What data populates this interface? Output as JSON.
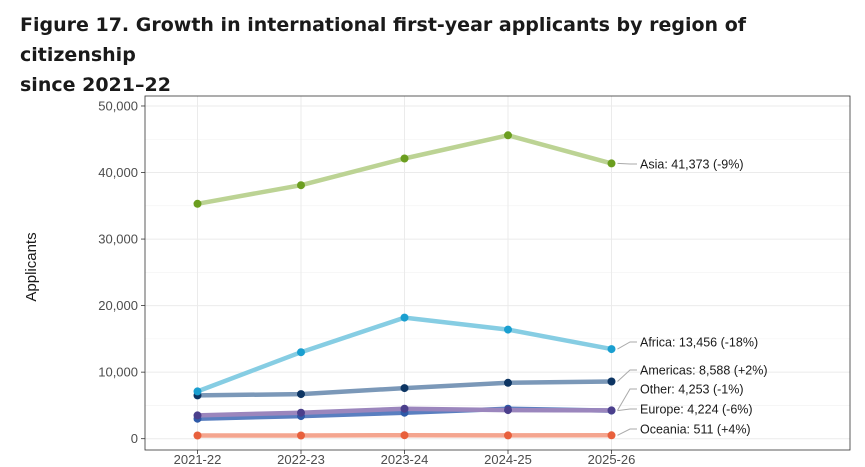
{
  "title_line1": "Figure 17. Growth in international first-year applicants by region of citizenship",
  "title_line2": "since 2021–22",
  "chart_data": {
    "type": "line",
    "title": "Figure 17. Growth in international first-year applicants by region of citizenship since 2021–22",
    "xlabel": "",
    "ylabel": "Applicants",
    "categories": [
      "2021-22",
      "2022-23",
      "2023-24",
      "2024-25",
      "2025-26"
    ],
    "y_ticks": [
      0,
      10000,
      20000,
      30000,
      40000,
      50000
    ],
    "y_tick_labels": [
      "0",
      "10,000",
      "20,000",
      "30,000",
      "40,000",
      "50,000"
    ],
    "ylim": [
      -1700,
      51500
    ],
    "grid": true,
    "series": [
      {
        "name": "Oceania",
        "values": [
          480,
          480,
          520,
          490,
          511
        ],
        "label": "Oceania: 511 (+4%)",
        "line_color": "#f4a58f",
        "point_color": "#e8603c"
      },
      {
        "name": "Europe",
        "values": [
          3000,
          3400,
          3900,
          4500,
          4224
        ],
        "label": "Europe: 4,224 (-6%)",
        "line_color": "#5a7fc0",
        "point_color": "#2e5aa8"
      },
      {
        "name": "Other",
        "values": [
          3500,
          3900,
          4500,
          4300,
          4253
        ],
        "label": "Other: 4,253 (-1%)",
        "line_color": "#9b86bd",
        "point_color": "#4b3f8c"
      },
      {
        "name": "Americas",
        "values": [
          6500,
          6700,
          7600,
          8400,
          8588
        ],
        "label": "Americas: 8,588 (+2%)",
        "line_color": "#7b98b8",
        "point_color": "#0d3563"
      },
      {
        "name": "Africa",
        "values": [
          7100,
          13000,
          18200,
          16400,
          13456
        ],
        "label": "Africa: 13,456 (-18%)",
        "line_color": "#86cde3",
        "point_color": "#1a9fd0"
      },
      {
        "name": "Asia",
        "values": [
          35300,
          38100,
          42100,
          45600,
          41373
        ],
        "label": "Asia: 41,373 (-9%)",
        "line_color": "#bcd394",
        "point_color": "#6b9e1f"
      }
    ]
  }
}
